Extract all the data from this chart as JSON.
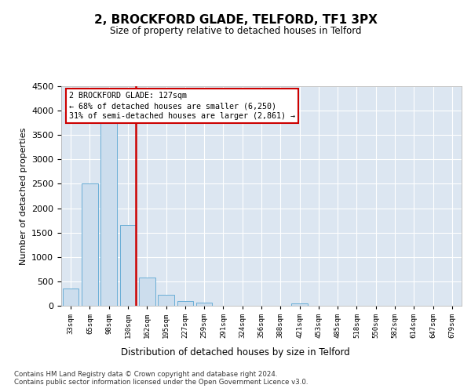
{
  "title": "2, BROCKFORD GLADE, TELFORD, TF1 3PX",
  "subtitle": "Size of property relative to detached houses in Telford",
  "xlabel": "Distribution of detached houses by size in Telford",
  "ylabel": "Number of detached properties",
  "categories": [
    "33sqm",
    "65sqm",
    "98sqm",
    "130sqm",
    "162sqm",
    "195sqm",
    "227sqm",
    "259sqm",
    "291sqm",
    "324sqm",
    "356sqm",
    "388sqm",
    "421sqm",
    "453sqm",
    "485sqm",
    "518sqm",
    "550sqm",
    "582sqm",
    "614sqm",
    "647sqm",
    "679sqm"
  ],
  "values": [
    350,
    2500,
    3750,
    1650,
    580,
    220,
    100,
    60,
    0,
    0,
    0,
    0,
    55,
    0,
    0,
    0,
    0,
    0,
    0,
    0,
    0
  ],
  "highlight_index": 3,
  "bar_color": "#ccdded",
  "bar_edge_color": "#6aaed6",
  "highlight_line_color": "#cc0000",
  "ylim": [
    0,
    4500
  ],
  "yticks": [
    0,
    500,
    1000,
    1500,
    2000,
    2500,
    3000,
    3500,
    4000,
    4500
  ],
  "annotation_title": "2 BROCKFORD GLADE: 127sqm",
  "annotation_line1": "← 68% of detached houses are smaller (6,250)",
  "annotation_line2": "31% of semi-detached houses are larger (2,861) →",
  "annotation_box_color": "#ffffff",
  "annotation_box_edge_color": "#cc0000",
  "footer_line1": "Contains HM Land Registry data © Crown copyright and database right 2024.",
  "footer_line2": "Contains public sector information licensed under the Open Government Licence v3.0.",
  "background_color": "#ffffff",
  "plot_bg_color": "#dce6f1"
}
